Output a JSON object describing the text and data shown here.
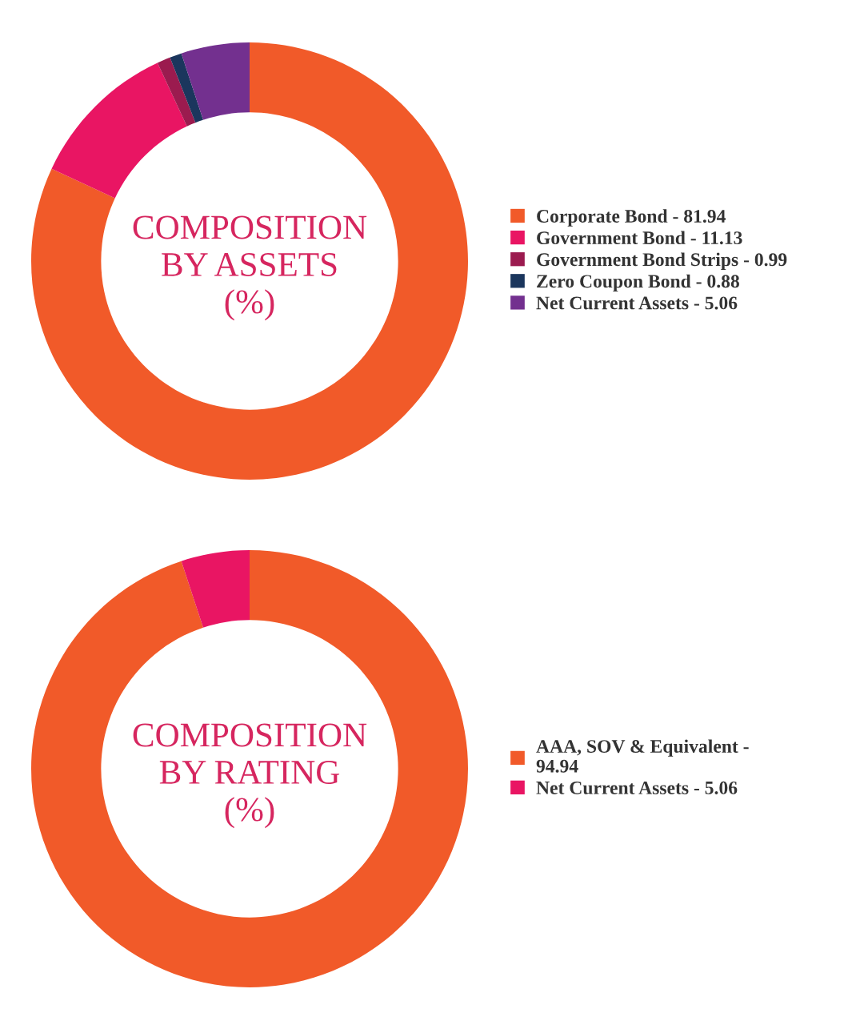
{
  "chart_data": [
    {
      "type": "donut",
      "title": "COMPOSITION\nBY ASSETS\n(%)",
      "categories": [
        "Corporate Bond - 81.94",
        "Government Bond - 11.13",
        "Government Bond Strips - 0.99",
        "Zero Coupon Bond - 0.88",
        "Net Current Assets - 5.06"
      ],
      "values": [
        81.94,
        11.13,
        0.99,
        0.88,
        5.06
      ],
      "colors": [
        "#f15a29",
        "#e91563",
        "#9b1b4f",
        "#1b365d",
        "#73308f"
      ],
      "legend": "right"
    },
    {
      "type": "donut",
      "title": "COMPOSITION\nBY RATING\n(%)",
      "categories": [
        "AAA, SOV & Equivalent -\n94.94",
        "Net Current Assets - 5.06"
      ],
      "values": [
        94.94,
        5.06
      ],
      "colors": [
        "#f15a29",
        "#e91563"
      ],
      "legend": "right"
    }
  ]
}
